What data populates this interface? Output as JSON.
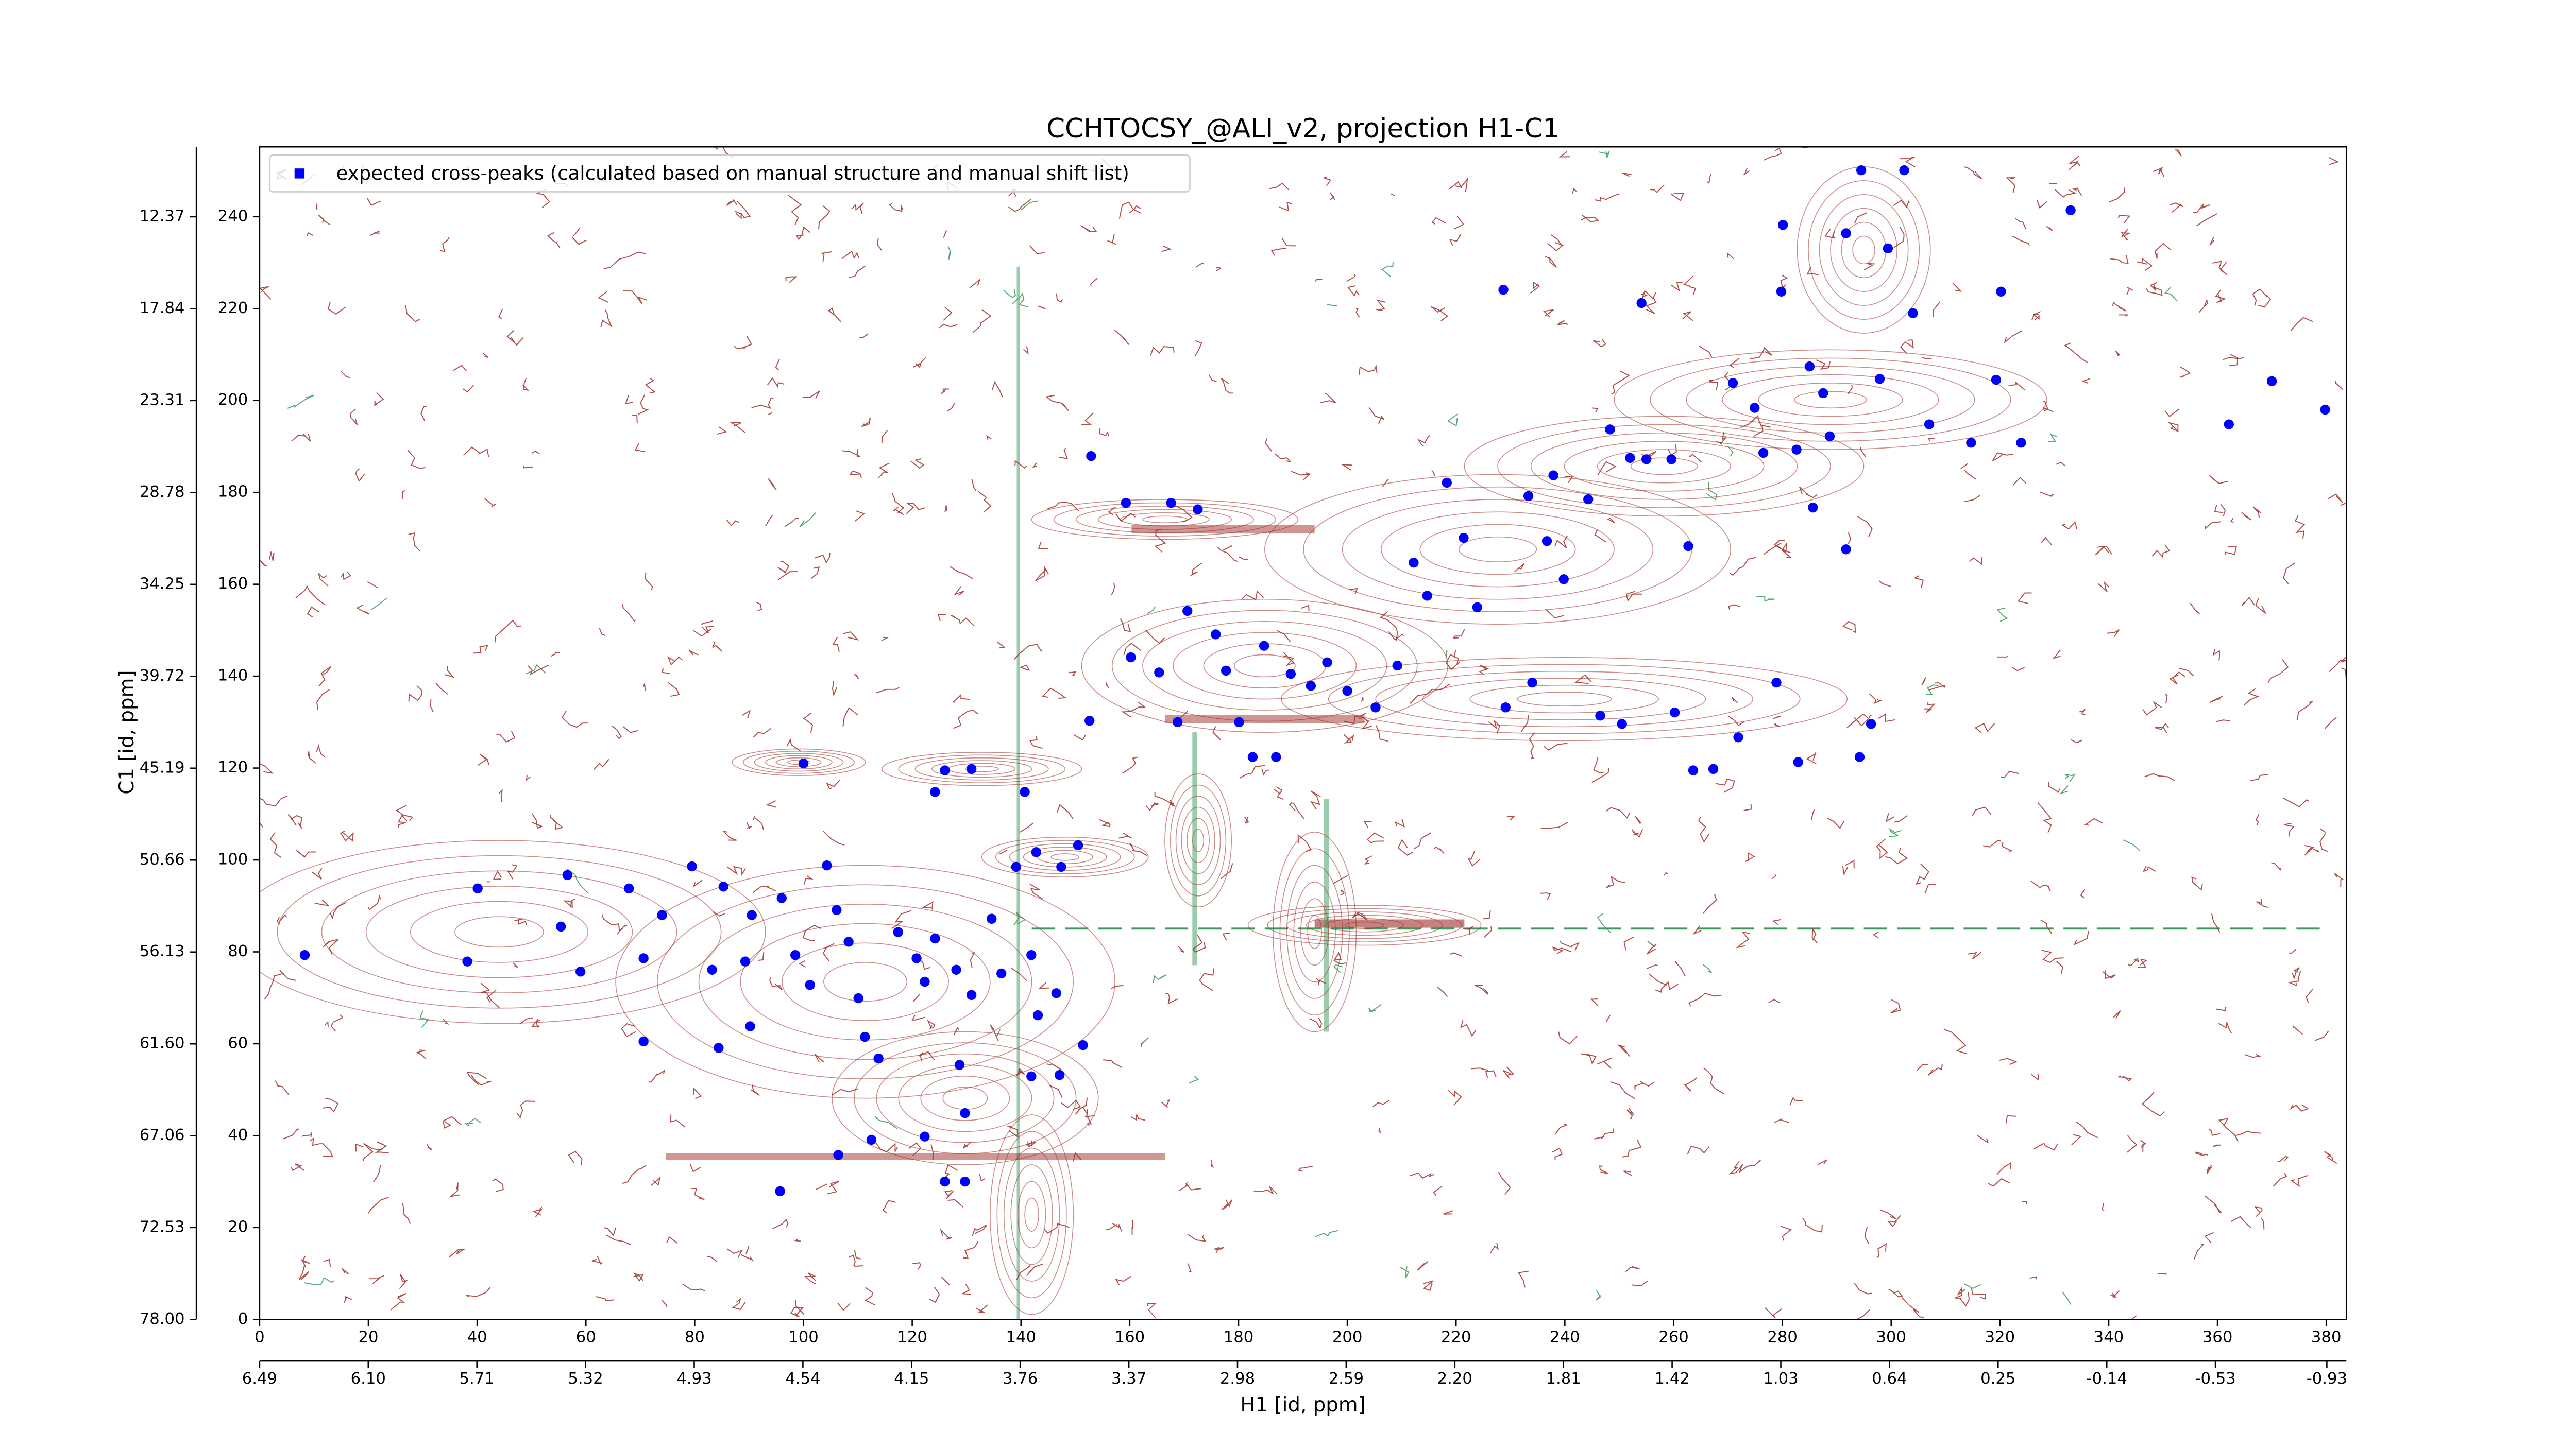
{
  "chart_data": {
    "type": "scatter",
    "title": "CCHTOCSY_@ALI_v2, projection H1-C1",
    "xlabel": "H1 [id, ppm]",
    "ylabel": "C1 [id, ppm]",
    "legend": "upper left",
    "series": [
      {
        "name": "expected cross-peaks (calculated based on manual structure and manual shift list)",
        "color": "#0000ff",
        "x": [
          8.3,
          40.1,
          38.2,
          56.6,
          55.4,
          59.0,
          67.9,
          70.6,
          74.0,
          70.6,
          79.5,
          85.3,
          84.4,
          90.2,
          83.2,
          89.3,
          90.5,
          96.0,
          98.5,
          101.2,
          104.3,
          106.1,
          108.3,
          110.1,
          111.3,
          113.8,
          117.4,
          120.8,
          122.3,
          124.2,
          128.7,
          128.1,
          130.9,
          134.6,
          136.4,
          141.9,
          143.1,
          146.5,
          151.4,
          147.1,
          141.9,
          129.7,
          122.3,
          112.5,
          106.4,
          95.7,
          126.0,
          129.7,
          139.1,
          147.4,
          142.8,
          150.5,
          126.0,
          130.9,
          140.7,
          124.2,
          100.0,
          152.9,
          159.3,
          167.6,
          170.6,
          172.5,
          160.2,
          165.4,
          152.6,
          168.8,
          175.8,
          177.7,
          180.1,
          182.6,
          186.9,
          184.7,
          189.6,
          193.3,
          196.3,
          200.0,
          205.2,
          209.2,
          212.2,
          214.7,
          218.3,
          221.4,
          223.9,
          228.7,
          229.1,
          233.3,
          236.7,
          239.8,
          237.9,
          244.3,
          246.5,
          248.3,
          252.0,
          254.1,
          255.0,
          259.6,
          262.7,
          263.6,
          267.3,
          271.9,
          276.5,
          278.9,
          280.1,
          279.8,
          282.6,
          282.9,
          285.0,
          285.6,
          287.5,
          291.7,
          294.2,
          294.5,
          302.4,
          291.7,
          299.4,
          297.9,
          304.0,
          307.0,
          314.7,
          319.3,
          320.2,
          323.9,
          333.0,
          362.1,
          370.0,
          379.8,
          296.3,
          260.2,
          250.5,
          234.0,
          288.7,
          274.9,
          270.9
        ],
        "values": [
          79.3,
          93.8,
          77.9,
          96.7,
          85.5,
          75.7,
          93.8,
          60.5,
          88.0,
          78.6,
          98.6,
          94.2,
          59.1,
          63.8,
          76.1,
          77.9,
          88.0,
          91.7,
          79.3,
          72.8,
          98.8,
          89.1,
          82.2,
          69.9,
          61.5,
          56.8,
          84.3,
          78.6,
          73.5,
          82.9,
          55.4,
          76.1,
          70.6,
          87.2,
          75.3,
          79.3,
          66.2,
          71.0,
          59.7,
          53.2,
          52.9,
          44.9,
          39.8,
          39.1,
          35.8,
          27.9,
          30.0,
          30.0,
          98.5,
          98.5,
          101.7,
          103.2,
          119.5,
          119.8,
          114.8,
          114.8,
          121.0,
          187.9,
          177.7,
          177.7,
          154.2,
          176.3,
          144.1,
          140.8,
          130.3,
          130.0,
          149.1,
          141.2,
          130.0,
          122.4,
          122.4,
          146.6,
          140.5,
          137.9,
          143.0,
          136.8,
          133.2,
          142.3,
          164.7,
          157.5,
          182.1,
          170.1,
          155.0,
          224.1,
          133.2,
          179.2,
          169.4,
          161.1,
          183.7,
          178.5,
          131.4,
          193.7,
          187.5,
          221.2,
          187.2,
          187.2,
          168.3,
          119.5,
          119.8,
          126.7,
          188.6,
          138.6,
          238.2,
          223.7,
          189.3,
          121.3,
          207.4,
          176.7,
          201.6,
          167.6,
          122.4,
          250.1,
          250.1,
          236.4,
          233.1,
          204.7,
          219.0,
          194.8,
          190.8,
          204.5,
          223.7,
          190.8,
          241.4,
          194.8,
          204.2,
          198.0,
          129.6,
          132.1,
          129.6,
          138.6,
          192.2,
          198.4,
          203.8
        ]
      }
    ],
    "xlim": [
      0,
      383.7
    ],
    "xticks": [
      0,
      20,
      40,
      60,
      80,
      100,
      120,
      140,
      160,
      180,
      200,
      220,
      240,
      260,
      280,
      300,
      320,
      340,
      360,
      380
    ],
    "ylim": [
      0,
      255.2
    ],
    "yticks": [
      0,
      20,
      40,
      60,
      80,
      100,
      120,
      140,
      160,
      180,
      200,
      220,
      240
    ],
    "x2lim": [
      6.49,
      -1.0
    ],
    "x2ticks": [
      6.49,
      {
        "value": 6.1,
        "label": "6.10"
      },
      5.71,
      5.32,
      4.93,
      4.54,
      4.15,
      3.76,
      3.37,
      2.98,
      2.59,
      {
        "value": 2.2,
        "label": "2.20"
      },
      1.81,
      1.42,
      1.03,
      0.64,
      0.25,
      -0.14,
      -0.53,
      -0.93
    ],
    "y2lim": [
      78.0,
      8.21
    ],
    "y2ticks": [
      {
        "value": 78.0,
        "label": "78.00"
      },
      72.53,
      67.06,
      {
        "value": 61.6,
        "label": "61.60"
      },
      56.13,
      50.66,
      45.19,
      39.72,
      34.25,
      28.78,
      23.31,
      17.84,
      12.37
    ]
  }
}
